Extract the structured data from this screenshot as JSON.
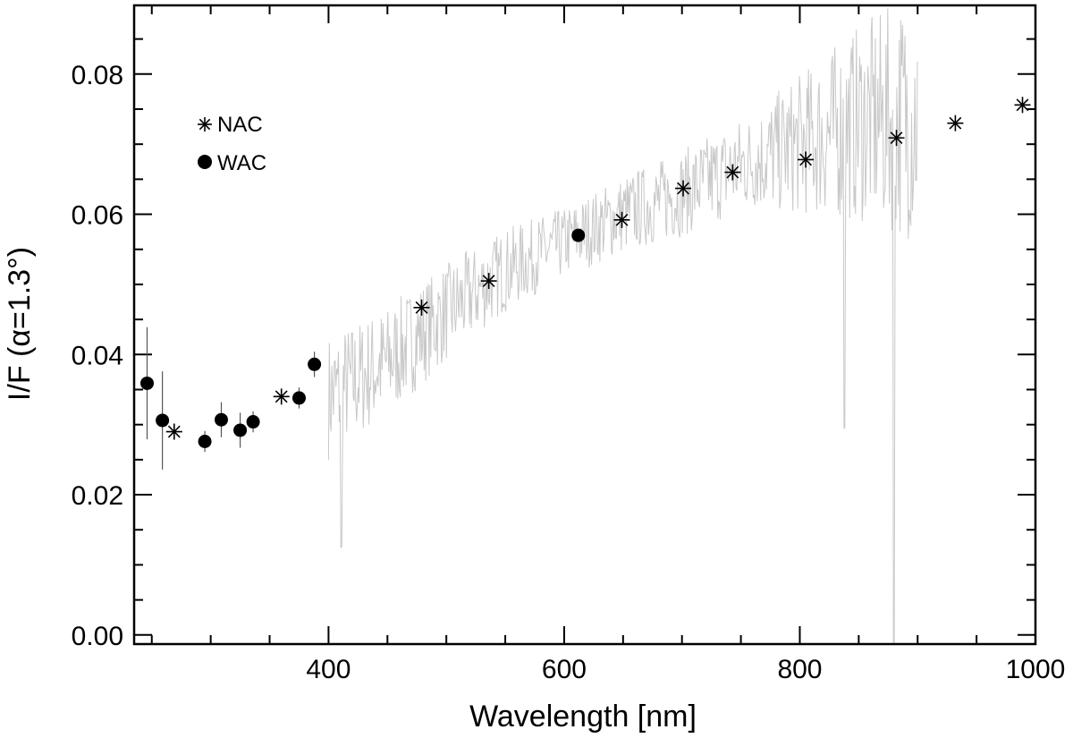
{
  "chart_data": {
    "type": "scatter",
    "title": "",
    "xlabel": "Wavelength [nm]",
    "ylabel": "I/F (α=1.3°)",
    "xlim": [
      235,
      1000
    ],
    "ylim": [
      -0.0013,
      0.0898
    ],
    "x_ticks": [
      400,
      600,
      800,
      1000
    ],
    "x_tick_labels": [
      "400",
      "600",
      "800",
      "1000"
    ],
    "y_ticks": [
      0.0,
      0.02,
      0.04,
      0.06,
      0.08
    ],
    "y_tick_labels": [
      "0.00",
      "0.02",
      "0.04",
      "0.06",
      "0.08"
    ],
    "legend_position": "top-left",
    "series": [
      {
        "name": "NAC",
        "marker": "asterisk",
        "color": "#000000",
        "points": [
          {
            "x": 269,
            "y": 0.029
          },
          {
            "x": 360,
            "y": 0.034
          },
          {
            "x": 479,
            "y": 0.0467
          },
          {
            "x": 536,
            "y": 0.0505
          },
          {
            "x": 649,
            "y": 0.0592
          },
          {
            "x": 701,
            "y": 0.0637
          },
          {
            "x": 743,
            "y": 0.066
          },
          {
            "x": 805,
            "y": 0.0678
          },
          {
            "x": 882,
            "y": 0.0709
          },
          {
            "x": 932,
            "y": 0.073
          },
          {
            "x": 989,
            "y": 0.0756
          }
        ]
      },
      {
        "name": "WAC",
        "marker": "filled-circle",
        "color": "#000000",
        "points": [
          {
            "x": 246,
            "y": 0.0359,
            "err": 0.008
          },
          {
            "x": 259,
            "y": 0.0306,
            "err": 0.007
          },
          {
            "x": 295,
            "y": 0.0276,
            "err": 0.0015
          },
          {
            "x": 309,
            "y": 0.0307,
            "err": 0.0025
          },
          {
            "x": 325,
            "y": 0.0292,
            "err": 0.0025
          },
          {
            "x": 336,
            "y": 0.0304,
            "err": 0.0015
          },
          {
            "x": 375,
            "y": 0.0338,
            "err": 0.0015
          },
          {
            "x": 388,
            "y": 0.0386,
            "err": 0.0018
          },
          {
            "x": 612,
            "y": 0.057,
            "err": 0.0008
          }
        ]
      },
      {
        "name": "",
        "marker": "line",
        "color": "#c8c8c8",
        "comment_free_note": "",
        "x_range": [
          400,
          900
        ],
        "trend": [
          {
            "x": 400,
            "y": 0.034
          },
          {
            "x": 450,
            "y": 0.039
          },
          {
            "x": 500,
            "y": 0.046
          },
          {
            "x": 550,
            "y": 0.052
          },
          {
            "x": 600,
            "y": 0.056
          },
          {
            "x": 650,
            "y": 0.06
          },
          {
            "x": 700,
            "y": 0.063
          },
          {
            "x": 750,
            "y": 0.067
          },
          {
            "x": 800,
            "y": 0.07
          },
          {
            "x": 850,
            "y": 0.073
          },
          {
            "x": 900,
            "y": 0.074
          }
        ],
        "noise_amplitude": [
          {
            "x": 400,
            "y": 0.009
          },
          {
            "x": 600,
            "y": 0.005
          },
          {
            "x": 760,
            "y": 0.007
          },
          {
            "x": 900,
            "y": 0.018
          }
        ],
        "dips": [
          {
            "x": 411,
            "y": 0.0125
          },
          {
            "x": 838,
            "y": 0.0295
          },
          {
            "x": 880,
            "y": -0.0013
          }
        ]
      }
    ]
  }
}
